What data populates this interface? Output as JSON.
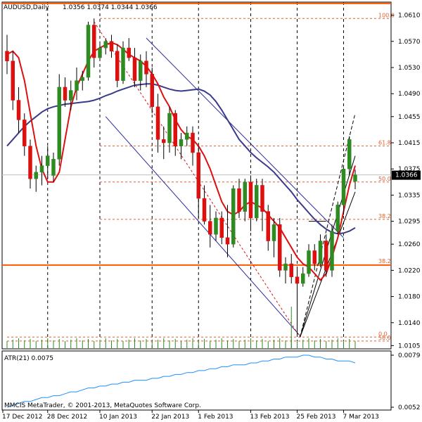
{
  "header": {
    "symbol_label": "AUDUSD,Daily",
    "ohlc_text": "1.0356 1.0374 1.0344 1.0366"
  },
  "footer": {
    "copyright": "MMCIS MetaTrader, © 2001-2013, MetaQuotes Software Corp."
  },
  "colors": {
    "bull": "#2e8b22",
    "bear": "#dd1010",
    "ma_fast": "#dd1010",
    "ma_slow": "#3a3a8a",
    "fib": "#e06030",
    "channel": "#2a2aa0",
    "atr": "#1e90ff",
    "hline": "#ff5a00",
    "volume": "#2e8b22"
  },
  "chart_data": [
    {
      "type": "candlestick",
      "title": "AUDUSD,Daily",
      "ylim": [
        1.01,
        1.063
      ],
      "y_ticks": [
        "1.0610",
        "1.0570",
        "1.0530",
        "1.0490",
        "1.0455",
        "1.0415",
        "1.0375",
        "1.0335",
        "1.0295",
        "1.0260",
        "1.0220",
        "1.0180",
        "1.0140",
        "1.0105"
      ],
      "x_ticks": [
        {
          "label": "17 Dec 2012",
          "bar": -2
        },
        {
          "label": "28 Dec 2012",
          "bar": 7
        },
        {
          "label": "10 Jan 2013",
          "bar": 16
        },
        {
          "label": "22 Jan 2013",
          "bar": 25
        },
        {
          "label": "1 Feb 2013",
          "bar": 33
        },
        {
          "label": "13 Feb 2013",
          "bar": 42
        },
        {
          "label": "25 Feb 2013",
          "bar": 50
        },
        {
          "label": "7 Mar 2013",
          "bar": 58
        }
      ],
      "current_price": "1.0366",
      "candles": [
        [
          1.0555,
          1.058,
          1.052,
          1.054
        ],
        [
          1.054,
          1.0555,
          1.0465,
          1.048
        ],
        [
          1.048,
          1.05,
          1.043,
          1.045
        ],
        [
          1.045,
          1.046,
          1.0395,
          1.041
        ],
        [
          1.041,
          1.042,
          1.0345,
          1.036
        ],
        [
          1.036,
          1.038,
          1.034,
          1.037
        ],
        [
          1.037,
          1.0395,
          1.035,
          1.038
        ],
        [
          1.038,
          1.041,
          1.036,
          1.0395
        ],
        [
          1.0365,
          1.04,
          1.0355,
          1.039
        ],
        [
          1.039,
          1.052,
          1.038,
          1.05
        ],
        [
          1.05,
          1.0515,
          1.047,
          1.048
        ],
        [
          1.048,
          1.051,
          1.0465,
          1.0495
        ],
        [
          1.0495,
          1.053,
          1.048,
          1.051
        ],
        [
          1.051,
          1.0525,
          1.0495,
          1.0515
        ],
        [
          1.0515,
          1.06,
          1.051,
          1.0595
        ],
        [
          1.0595,
          1.0605,
          1.053,
          1.0545
        ],
        [
          1.0545,
          1.057,
          1.054,
          1.056
        ],
        [
          1.056,
          1.0575,
          1.055,
          1.057
        ],
        [
          1.057,
          1.058,
          1.0545,
          1.0555
        ],
        [
          1.0555,
          1.0565,
          1.05,
          1.051
        ],
        [
          1.051,
          1.057,
          1.0505,
          1.056
        ],
        [
          1.056,
          1.0575,
          1.054,
          1.0545
        ],
        [
          1.0545,
          1.056,
          1.05,
          1.051
        ],
        [
          1.051,
          1.055,
          1.0495,
          1.054
        ],
        [
          1.054,
          1.0555,
          1.05,
          1.052
        ],
        [
          1.052,
          1.053,
          1.046,
          1.047
        ],
        [
          1.047,
          1.049,
          1.04,
          1.042
        ],
        [
          1.042,
          1.044,
          1.039,
          1.0415
        ],
        [
          1.0415,
          1.047,
          1.04,
          1.046
        ],
        [
          1.046,
          1.0465,
          1.0395,
          1.041
        ],
        [
          1.041,
          1.043,
          1.039,
          1.042
        ],
        [
          1.042,
          1.044,
          1.041,
          1.043
        ],
        [
          1.043,
          1.044,
          1.038,
          1.04
        ],
        [
          1.04,
          1.041,
          1.03,
          1.033
        ],
        [
          1.033,
          1.035,
          1.029,
          1.0295
        ],
        [
          1.0295,
          1.032,
          1.0255,
          1.0275
        ],
        [
          1.0275,
          1.031,
          1.0265,
          1.03
        ],
        [
          1.03,
          1.031,
          1.026,
          1.027
        ],
        [
          1.027,
          1.032,
          1.024,
          1.026
        ],
        [
          1.026,
          1.035,
          1.0255,
          1.0345
        ],
        [
          1.0345,
          1.036,
          1.03,
          1.031
        ],
        [
          1.031,
          1.036,
          1.0295,
          1.0355
        ],
        [
          1.0355,
          1.0365,
          1.028,
          1.03
        ],
        [
          1.03,
          1.036,
          1.0295,
          1.035
        ],
        [
          1.035,
          1.036,
          1.028,
          1.031
        ],
        [
          1.031,
          1.032,
          1.025,
          1.0265
        ],
        [
          1.0265,
          1.03,
          1.024,
          1.029
        ],
        [
          1.029,
          1.03,
          1.021,
          1.022
        ],
        [
          1.022,
          1.024,
          1.02,
          1.023
        ],
        [
          1.023,
          1.0245,
          1.02,
          1.021
        ],
        [
          1.021,
          1.0225,
          1.012,
          1.02
        ],
        [
          1.02,
          1.0225,
          1.0195,
          1.0215
        ],
        [
          1.0215,
          1.026,
          1.021,
          1.025
        ],
        [
          1.025,
          1.026,
          1.022,
          1.023
        ],
        [
          1.023,
          1.0275,
          1.0225,
          1.0265
        ],
        [
          1.0265,
          1.0275,
          1.021,
          1.022
        ],
        [
          1.022,
          1.029,
          1.021,
          1.028
        ],
        [
          1.028,
          1.0325,
          1.0275,
          1.032
        ],
        [
          1.032,
          1.038,
          1.0305,
          1.0375
        ],
        [
          1.0375,
          1.0425,
          1.0365,
          1.042
        ],
        [
          1.0356,
          1.0374,
          1.0344,
          1.0366
        ]
      ],
      "ma_fast": [
        1.055,
        1.0555,
        1.0545,
        1.051,
        1.046,
        1.041,
        1.0375,
        1.0355,
        1.0355,
        1.037,
        1.042,
        1.047,
        1.05,
        1.052,
        1.054,
        1.0555,
        1.056,
        1.0565,
        1.0568,
        1.0565,
        1.0558,
        1.055,
        1.0545,
        1.054,
        1.0532,
        1.052,
        1.0505,
        1.0485,
        1.047,
        1.045,
        1.0435,
        1.0425,
        1.042,
        1.041,
        1.0395,
        1.0375,
        1.035,
        1.0325,
        1.031,
        1.0305,
        1.031,
        1.032,
        1.0325,
        1.032,
        1.0315,
        1.0305,
        1.0295,
        1.0285,
        1.027,
        1.0255,
        1.024,
        1.023,
        1.0225,
        1.0215,
        1.0205,
        1.0215,
        1.024,
        1.027,
        1.031,
        1.035,
        1.038
      ],
      "ma_slow": [
        1.041,
        1.042,
        1.043,
        1.044,
        1.0448,
        1.0455,
        1.0462,
        1.0467,
        1.047,
        1.0472,
        1.0474,
        1.0475,
        1.0476,
        1.0477,
        1.0478,
        1.048,
        1.0483,
        1.0487,
        1.049,
        1.0494,
        1.0497,
        1.05,
        1.0503,
        1.0504,
        1.0505,
        1.0505,
        1.0503,
        1.05,
        1.0497,
        1.0495,
        1.0494,
        1.0495,
        1.0496,
        1.0497,
        1.0494,
        1.0488,
        1.0478,
        1.0465,
        1.045,
        1.0435,
        1.042,
        1.041,
        1.04,
        1.0392,
        1.0385,
        1.0378,
        1.037,
        1.036,
        1.035,
        1.034,
        1.0328,
        1.0318,
        1.0308,
        1.0298,
        1.029,
        1.0283,
        1.0278,
        1.0276,
        1.0277,
        1.028,
        1.0285
      ],
      "fib_levels": [
        {
          "label": "100.0",
          "price": 1.0605
        },
        {
          "label": "61.8",
          "price": 1.041
        },
        {
          "label": "50.0",
          "price": 1.0355
        },
        {
          "label": "38.2",
          "price": 1.0298
        },
        {
          "label": "0.0",
          "price": 1.0118
        },
        {
          "label": "50.0",
          "price": 1.0112
        }
      ],
      "support_line": {
        "label": "38.2",
        "price": 1.0228
      },
      "top_line_price": 1.0628
    },
    {
      "type": "line",
      "title": "ATR(21) 0.0075",
      "ylim": [
        0.0052,
        0.0079
      ],
      "y_ticks": [
        "0.0079",
        "0.0052"
      ],
      "values": [
        0.0052,
        0.0053,
        0.0054,
        0.0055,
        0.0055,
        0.0056,
        0.0057,
        0.0057,
        0.0058,
        0.0058,
        0.0059,
        0.006,
        0.006,
        0.0061,
        0.0062,
        0.0062,
        0.0063,
        0.0063,
        0.0064,
        0.0064,
        0.0065,
        0.0065,
        0.0066,
        0.0066,
        0.0066,
        0.0067,
        0.0067,
        0.0068,
        0.0068,
        0.0069,
        0.0069,
        0.007,
        0.007,
        0.0071,
        0.0071,
        0.0072,
        0.0072,
        0.0073,
        0.0073,
        0.0074,
        0.0074,
        0.0074,
        0.0075,
        0.0075,
        0.0076,
        0.0076,
        0.0077,
        0.0077,
        0.0078,
        0.0078,
        0.0078,
        0.0079,
        0.0079,
        0.0078,
        0.0078,
        0.0077,
        0.0077,
        0.0076,
        0.0076,
        0.0076,
        0.0075
      ]
    }
  ]
}
